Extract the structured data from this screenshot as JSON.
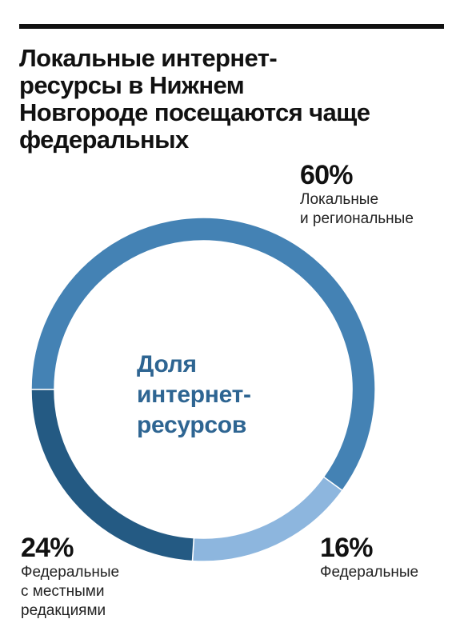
{
  "title": "Локальные интернет-\nресурсы в Нижнем\nНовгороде посещаются чаще\nфедеральных",
  "center_label": "Доля\nинтернет-\nресурсов",
  "colors": {
    "local_regional": "#4482b4",
    "federal": "#8db6de",
    "federal_local": "#245a83",
    "center_text": "#2e6592"
  },
  "chart_data": {
    "type": "pie",
    "donut": true,
    "title": "Локальные интернет-ресурсы в Нижнем Новгороде посещаются чаще федеральных",
    "center_text": "Доля интернет-ресурсов",
    "unit": "%",
    "slices": [
      {
        "label": "Локальные и региональные",
        "value": 60,
        "value_label": "60%",
        "color": "#4482b4"
      },
      {
        "label": "Федеральные",
        "value": 16,
        "value_label": "16%",
        "color": "#8db6de"
      },
      {
        "label": "Федеральные с местными редакциями",
        "value": 24,
        "value_label": "24%",
        "color": "#245a83"
      }
    ]
  },
  "callouts": {
    "local_regional": {
      "value": "60%",
      "text": "Локальные\nи региональные"
    },
    "federal": {
      "value": "16%",
      "text": "Федеральные"
    },
    "federal_local": {
      "value": "24%",
      "text": "Федеральные\nс местными\nредакциями"
    }
  }
}
